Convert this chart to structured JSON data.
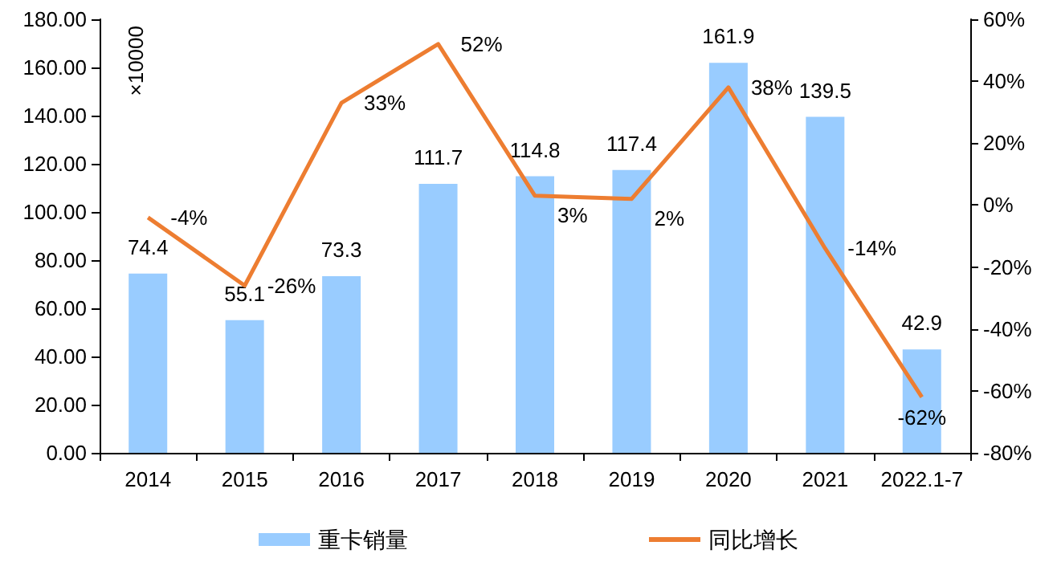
{
  "chart_data": {
    "type": "bar",
    "ylabel": "×10000",
    "categories": [
      "2014",
      "2015",
      "2016",
      "2017",
      "2018",
      "2019",
      "2020",
      "2021",
      "2022.1-7"
    ],
    "series": [
      {
        "name": "重卡销量",
        "color": "#99ccff",
        "values": [
          74.4,
          55.1,
          73.3,
          111.7,
          114.8,
          117.4,
          161.9,
          139.5,
          42.9
        ],
        "value_labels": [
          "74.4",
          "55.1",
          "73.3",
          "111.7",
          "114.8",
          "117.4",
          "161.9",
          "139.5",
          "42.9"
        ]
      },
      {
        "name": "同比增长",
        "type": "line",
        "axis": "y2",
        "color": "#ed7d31",
        "values": [
          -4,
          -26,
          33,
          52,
          3,
          2,
          38,
          -14,
          -62
        ],
        "value_labels": [
          "-4%",
          "-26%",
          "33%",
          "52%",
          "3%",
          "2%",
          "38%",
          "-14%",
          "-62%"
        ]
      }
    ],
    "ylim": [
      0,
      180
    ],
    "yticks": [
      {
        "value": 0,
        "label": "0.00"
      },
      {
        "value": 20,
        "label": "20.00"
      },
      {
        "value": 40,
        "label": "40.00"
      },
      {
        "value": 60,
        "label": "60.00"
      },
      {
        "value": 80,
        "label": "80.00"
      },
      {
        "value": 100,
        "label": "100.00"
      },
      {
        "value": 120,
        "label": "120.00"
      },
      {
        "value": 140,
        "label": "140.00"
      },
      {
        "value": 160,
        "label": "160.00"
      },
      {
        "value": 180,
        "label": "180.00"
      }
    ],
    "y2lim": [
      -80,
      60
    ],
    "y2ticks": [
      {
        "value": -80,
        "label": "-80%"
      },
      {
        "value": -60,
        "label": "-60%"
      },
      {
        "value": -40,
        "label": "-40%"
      },
      {
        "value": -20,
        "label": "-20%"
      },
      {
        "value": 0,
        "label": "0%"
      },
      {
        "value": 20,
        "label": "20%"
      },
      {
        "value": 40,
        "label": "40%"
      },
      {
        "value": 60,
        "label": "60%"
      }
    ],
    "grid": false,
    "legend": "bottom",
    "marker": "none",
    "line_style": "solid"
  }
}
